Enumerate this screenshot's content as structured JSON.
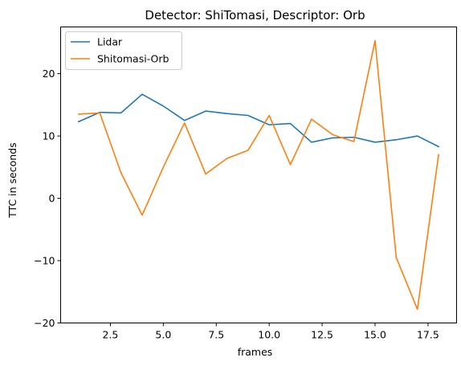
{
  "chart_data": {
    "type": "line",
    "title": "Detector: ShiTomasi, Descriptor: Orb",
    "xlabel": "frames",
    "ylabel": "TTC in seconds",
    "xlim": [
      0.15,
      18.85
    ],
    "ylim": [
      -20,
      27.5
    ],
    "xticks": [
      2.5,
      5.0,
      7.5,
      10.0,
      12.5,
      15.0,
      17.5
    ],
    "xtick_labels": [
      "2.5",
      "5.0",
      "7.5",
      "10.0",
      "12.5",
      "15.0",
      "17.5"
    ],
    "yticks": [
      -20,
      -10,
      0,
      10,
      20
    ],
    "ytick_labels": [
      "−20",
      "−10",
      "0",
      "10",
      "20"
    ],
    "grid": false,
    "legend": "top-left",
    "x": [
      1,
      2,
      3,
      4,
      5,
      6,
      7,
      8,
      9,
      10,
      11,
      12,
      13,
      14,
      15,
      16,
      17,
      18
    ],
    "series": [
      {
        "name": "Lidar",
        "color": "#1f77b4",
        "values": [
          12.3,
          13.8,
          13.7,
          16.7,
          14.8,
          12.5,
          14.0,
          13.6,
          13.3,
          11.8,
          12.0,
          9.0,
          9.7,
          9.8,
          9.0,
          9.4,
          10.0,
          8.3
        ]
      },
      {
        "name": "Shitomasi-Orb",
        "color": "#ff7f0e",
        "values": [
          13.5,
          13.7,
          4.1,
          -2.7,
          5.0,
          12.1,
          3.9,
          6.4,
          7.7,
          13.3,
          5.4,
          12.7,
          10.2,
          9.1,
          25.3,
          -9.5,
          -17.8,
          7.0
        ]
      }
    ]
  }
}
